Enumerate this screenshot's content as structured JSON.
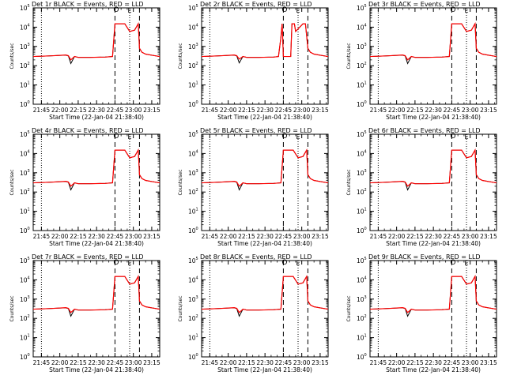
{
  "figure": {
    "xtick_labels": [
      "21:45",
      "22:00",
      "22:15",
      "22:30",
      "22:45",
      "23:00",
      "23:15"
    ],
    "xtick_values_min": [
      0,
      15,
      30,
      45,
      60,
      75,
      90
    ],
    "xlim_min": [
      -6.7,
      96.5
    ],
    "x_origin_time": "21:45",
    "xlabel": "Start Time (22-Jan-04 21:38:40)",
    "ylabel": "Counts/sec",
    "ylim": [
      1,
      100000
    ],
    "yscale": "log",
    "ytick_exponents": [
      0,
      1,
      2,
      3,
      4,
      5
    ],
    "colors": {
      "black": "#000000",
      "red": "#ff0000",
      "axes": "#000000"
    },
    "markers": {
      "circle": "O",
      "letter": "E",
      "circle_min": 61,
      "letter_min": 72
    },
    "vlines": [
      {
        "min": 0,
        "style": "dotted"
      },
      {
        "min": 60,
        "style": "dashed"
      },
      {
        "min": 72,
        "style": "dotted"
      },
      {
        "min": 80,
        "style": "dashed"
      }
    ]
  },
  "chart_data": [
    {
      "type": "line",
      "title": "Det 1r BLACK = Events, RED = LLD",
      "dip": true,
      "series": [
        {
          "name": "Events",
          "color": "#000000",
          "x": [
            -6.7,
            0,
            10,
            20,
            22,
            24,
            27,
            30,
            40,
            52,
            58,
            60,
            68,
            72,
            76,
            79,
            80,
            82,
            85,
            90,
            96.5
          ],
          "y": [
            300,
            310,
            330,
            350,
            320,
            130,
            300,
            270,
            270,
            280,
            300,
            15000,
            15000,
            6000,
            7000,
            15000,
            800,
            500,
            400,
            350,
            300
          ]
        },
        {
          "name": "LLD",
          "color": "#ff0000",
          "x": [
            -6.7,
            0,
            10,
            20,
            22,
            24,
            27,
            30,
            40,
            52,
            58,
            60,
            68,
            72,
            76,
            79,
            80,
            82,
            85,
            90,
            96.5
          ],
          "y": [
            300,
            310,
            330,
            360,
            330,
            200,
            300,
            270,
            270,
            280,
            300,
            15000,
            15000,
            6000,
            7000,
            15000,
            800,
            500,
            400,
            350,
            300
          ]
        }
      ]
    },
    {
      "type": "line",
      "title": "Det 2r BLACK = Events, RED = LLD",
      "dip": false,
      "series": [
        {
          "name": "Events",
          "color": "#000000",
          "x": [
            -6.7,
            0,
            10,
            20,
            22,
            24,
            27,
            30,
            40,
            52,
            56,
            58,
            59,
            60,
            66,
            67,
            69,
            70,
            76,
            78,
            80,
            82,
            85,
            90,
            96.5
          ],
          "y": [
            300,
            310,
            330,
            350,
            320,
            140,
            300,
            270,
            270,
            280,
            300,
            3000,
            15000,
            300,
            300,
            15000,
            15000,
            6000,
            15000,
            15000,
            800,
            500,
            400,
            350,
            300
          ]
        },
        {
          "name": "LLD",
          "color": "#ff0000",
          "x": [
            -6.7,
            0,
            10,
            20,
            22,
            24,
            27,
            30,
            40,
            52,
            56,
            58,
            59,
            60,
            66,
            67,
            69,
            70,
            76,
            78,
            80,
            82,
            85,
            90,
            96.5
          ],
          "y": [
            300,
            310,
            330,
            360,
            330,
            220,
            300,
            270,
            270,
            280,
            300,
            3000,
            15000,
            300,
            300,
            15000,
            15000,
            6000,
            15000,
            15000,
            800,
            500,
            400,
            350,
            300
          ]
        }
      ]
    },
    {
      "type": "line",
      "title": "Det 3r BLACK = Events, RED = LLD",
      "dip": true,
      "series": [
        {
          "name": "Events",
          "color": "#000000",
          "x": [
            -6.7,
            0,
            10,
            20,
            22,
            24,
            27,
            30,
            40,
            52,
            58,
            60,
            68,
            72,
            76,
            79,
            80,
            82,
            85,
            90,
            96.5
          ],
          "y": [
            300,
            310,
            330,
            350,
            320,
            130,
            300,
            270,
            270,
            280,
            300,
            15000,
            15000,
            6000,
            7000,
            15000,
            800,
            500,
            400,
            350,
            300
          ]
        },
        {
          "name": "LLD",
          "color": "#ff0000",
          "x": [
            -6.7,
            0,
            10,
            20,
            22,
            24,
            27,
            30,
            40,
            52,
            58,
            60,
            68,
            72,
            76,
            79,
            80,
            82,
            85,
            90,
            96.5
          ],
          "y": [
            300,
            310,
            330,
            360,
            330,
            200,
            300,
            270,
            270,
            280,
            300,
            15000,
            15000,
            6000,
            7000,
            15000,
            800,
            500,
            400,
            350,
            300
          ]
        }
      ]
    },
    {
      "type": "line",
      "title": "Det 4r BLACK = Events, RED = LLD",
      "dip": true,
      "series": [
        {
          "name": "Events",
          "color": "#000000",
          "x": [
            -6.7,
            0,
            10,
            20,
            22,
            24,
            27,
            30,
            40,
            52,
            58,
            60,
            68,
            72,
            76,
            79,
            80,
            82,
            85,
            90,
            96.5
          ],
          "y": [
            300,
            310,
            330,
            350,
            320,
            130,
            300,
            270,
            270,
            280,
            300,
            15000,
            15000,
            6000,
            7000,
            15000,
            800,
            500,
            400,
            350,
            300
          ]
        },
        {
          "name": "LLD",
          "color": "#ff0000",
          "x": [
            -6.7,
            0,
            10,
            20,
            22,
            24,
            27,
            30,
            40,
            52,
            58,
            60,
            68,
            72,
            76,
            79,
            80,
            82,
            85,
            90,
            96.5
          ],
          "y": [
            300,
            310,
            330,
            360,
            330,
            200,
            300,
            270,
            270,
            280,
            300,
            15000,
            15000,
            6000,
            7000,
            15000,
            800,
            500,
            400,
            350,
            300
          ]
        }
      ]
    },
    {
      "type": "line",
      "title": "Det 5r BLACK = Events, RED = LLD",
      "dip": true,
      "series": [
        {
          "name": "Events",
          "color": "#000000",
          "x": [
            -6.7,
            0,
            10,
            20,
            22,
            24,
            27,
            30,
            40,
            52,
            58,
            60,
            68,
            72,
            76,
            79,
            80,
            82,
            85,
            90,
            96.5
          ],
          "y": [
            300,
            310,
            330,
            350,
            320,
            130,
            300,
            270,
            270,
            280,
            300,
            15000,
            15000,
            6000,
            7000,
            15000,
            800,
            500,
            400,
            350,
            300
          ]
        },
        {
          "name": "LLD",
          "color": "#ff0000",
          "x": [
            -6.7,
            0,
            10,
            20,
            22,
            24,
            27,
            30,
            40,
            52,
            58,
            60,
            68,
            72,
            76,
            79,
            80,
            82,
            85,
            90,
            96.5
          ],
          "y": [
            300,
            310,
            330,
            360,
            330,
            200,
            300,
            270,
            270,
            280,
            300,
            15000,
            15000,
            6000,
            7000,
            15000,
            800,
            500,
            400,
            350,
            300
          ]
        }
      ]
    },
    {
      "type": "line",
      "title": "Det 6r BLACK = Events, RED = LLD",
      "dip": true,
      "series": [
        {
          "name": "Events",
          "color": "#000000",
          "x": [
            -6.7,
            0,
            10,
            20,
            22,
            24,
            27,
            30,
            40,
            52,
            58,
            60,
            68,
            72,
            76,
            79,
            80,
            82,
            85,
            90,
            96.5
          ],
          "y": [
            300,
            310,
            330,
            350,
            320,
            130,
            300,
            270,
            270,
            280,
            300,
            15000,
            15000,
            6000,
            7000,
            15000,
            800,
            500,
            400,
            350,
            300
          ]
        },
        {
          "name": "LLD",
          "color": "#ff0000",
          "x": [
            -6.7,
            0,
            10,
            20,
            22,
            24,
            27,
            30,
            40,
            52,
            58,
            60,
            68,
            72,
            76,
            79,
            80,
            82,
            85,
            90,
            96.5
          ],
          "y": [
            300,
            310,
            330,
            360,
            330,
            200,
            300,
            270,
            270,
            280,
            300,
            15000,
            15000,
            6000,
            7000,
            15000,
            800,
            500,
            400,
            350,
            300
          ]
        }
      ]
    },
    {
      "type": "line",
      "title": "Det 7r BLACK = Events, RED = LLD",
      "dip": true,
      "series": [
        {
          "name": "Events",
          "color": "#000000",
          "x": [
            -6.7,
            0,
            10,
            20,
            22,
            24,
            27,
            30,
            40,
            52,
            58,
            60,
            68,
            72,
            76,
            79,
            80,
            82,
            85,
            90,
            96.5
          ],
          "y": [
            300,
            310,
            330,
            350,
            320,
            130,
            300,
            270,
            270,
            280,
            300,
            15000,
            15000,
            6000,
            7000,
            15000,
            800,
            500,
            400,
            350,
            300
          ]
        },
        {
          "name": "LLD",
          "color": "#ff0000",
          "x": [
            -6.7,
            0,
            10,
            20,
            22,
            24,
            27,
            30,
            40,
            52,
            58,
            60,
            68,
            72,
            76,
            79,
            80,
            82,
            85,
            90,
            96.5
          ],
          "y": [
            300,
            310,
            330,
            360,
            330,
            200,
            300,
            270,
            270,
            280,
            300,
            15000,
            15000,
            6000,
            7000,
            15000,
            800,
            500,
            400,
            350,
            300
          ]
        }
      ]
    },
    {
      "type": "line",
      "title": "Det 8r BLACK = Events, RED = LLD",
      "dip": true,
      "series": [
        {
          "name": "Events",
          "color": "#000000",
          "x": [
            -6.7,
            0,
            10,
            20,
            22,
            24,
            27,
            30,
            40,
            52,
            58,
            60,
            68,
            72,
            76,
            79,
            80,
            82,
            85,
            90,
            96.5
          ],
          "y": [
            300,
            310,
            330,
            350,
            320,
            130,
            300,
            270,
            270,
            280,
            300,
            15000,
            15000,
            6000,
            7000,
            15000,
            800,
            500,
            400,
            350,
            300
          ]
        },
        {
          "name": "LLD",
          "color": "#ff0000",
          "x": [
            -6.7,
            0,
            10,
            20,
            22,
            24,
            27,
            30,
            40,
            52,
            58,
            60,
            68,
            72,
            76,
            79,
            80,
            82,
            85,
            90,
            96.5
          ],
          "y": [
            300,
            310,
            330,
            360,
            330,
            200,
            300,
            270,
            270,
            280,
            300,
            15000,
            15000,
            6000,
            7000,
            15000,
            800,
            500,
            400,
            350,
            300
          ]
        }
      ]
    },
    {
      "type": "line",
      "title": "Det 9r BLACK = Events, RED = LLD",
      "dip": true,
      "series": [
        {
          "name": "Events",
          "color": "#000000",
          "x": [
            -6.7,
            0,
            10,
            20,
            22,
            24,
            27,
            30,
            40,
            52,
            58,
            60,
            68,
            72,
            76,
            79,
            80,
            82,
            85,
            90,
            96.5
          ],
          "y": [
            300,
            310,
            330,
            350,
            320,
            130,
            300,
            270,
            270,
            280,
            300,
            15000,
            15000,
            6000,
            7000,
            15000,
            800,
            500,
            400,
            350,
            300
          ]
        },
        {
          "name": "LLD",
          "color": "#ff0000",
          "x": [
            -6.7,
            0,
            10,
            20,
            22,
            24,
            27,
            30,
            40,
            52,
            58,
            60,
            68,
            72,
            76,
            79,
            80,
            82,
            85,
            90,
            96.5
          ],
          "y": [
            300,
            310,
            330,
            360,
            330,
            200,
            300,
            270,
            270,
            280,
            300,
            15000,
            15000,
            6000,
            7000,
            15000,
            800,
            500,
            400,
            350,
            300
          ]
        }
      ]
    }
  ]
}
